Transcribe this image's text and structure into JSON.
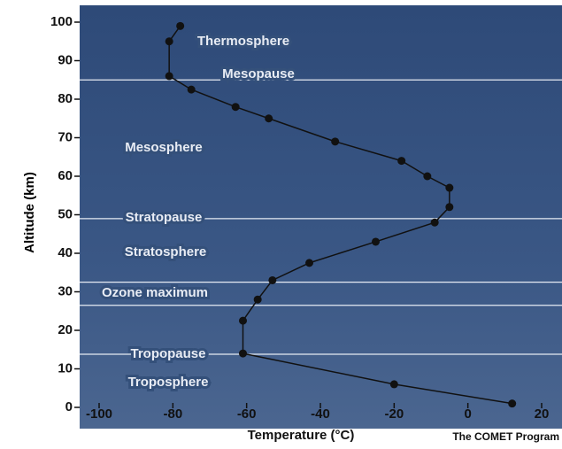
{
  "chart_data": {
    "type": "line",
    "xlabel": "Temperature (°C)",
    "ylabel": "Altitude (km)",
    "credit": "The COMET Program",
    "x": [
      12,
      -20,
      -61,
      -61,
      -57,
      -53,
      -43,
      -25,
      -9,
      -5,
      -5,
      -11,
      -18,
      -36,
      -54,
      -63,
      -75,
      -81,
      -81,
      -78
    ],
    "values": [
      1,
      6,
      14,
      22.5,
      28,
      33,
      37.5,
      43,
      48,
      52,
      57,
      60,
      64,
      69,
      75,
      78,
      82.5,
      86,
      95,
      99
    ],
    "color": "#111111",
    "xlim": [
      -100,
      20
    ],
    "xticks": [
      -100,
      -80,
      -60,
      -40,
      -20,
      0,
      20
    ],
    "ylim": [
      0,
      100
    ],
    "yticks": [
      0,
      10,
      20,
      30,
      40,
      50,
      60,
      70,
      80,
      90,
      100
    ],
    "boundaries": [
      85,
      49,
      32.5,
      26.5,
      13.8
    ],
    "layers": [
      "Thermosphere",
      "Mesopause",
      "Mesosphere",
      "Stratopause",
      "Stratosphere",
      "Ozone maximum",
      "Tropopause",
      "Troposphere"
    ]
  }
}
